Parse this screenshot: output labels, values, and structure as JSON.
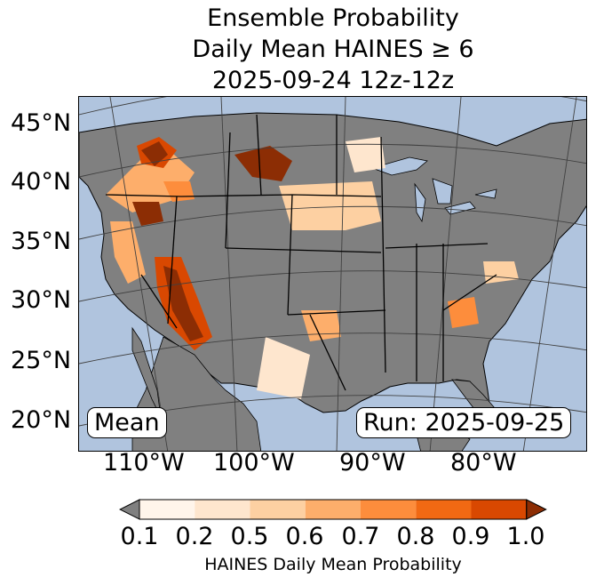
{
  "title": {
    "line1": "Ensemble Probability",
    "line2": "Daily Mean HAINES ≥ 6",
    "line3": "2025-09-24 12z-12z"
  },
  "map": {
    "ocean_color": "#b0c4de",
    "land_color": "#808080",
    "lat_labels": [
      "45°N",
      "40°N",
      "35°N",
      "30°N",
      "25°N",
      "20°N"
    ],
    "lon_labels": [
      "110°W",
      "100°W",
      "90°W",
      "80°W"
    ],
    "left_box": "Mean",
    "right_box": "Run: 2025-09-25"
  },
  "colorbar": {
    "ticks": [
      "0.1",
      "0.2",
      "0.5",
      "0.6",
      "0.7",
      "0.8",
      "0.9",
      "1.0"
    ],
    "colors": [
      "#fff5eb",
      "#fee6ce",
      "#fdd0a2",
      "#fdae6b",
      "#fd8d3c",
      "#f16913",
      "#d94801",
      "#8c2d04"
    ],
    "under_color": "#808080",
    "label": "HAINES Daily Mean Probability"
  }
}
